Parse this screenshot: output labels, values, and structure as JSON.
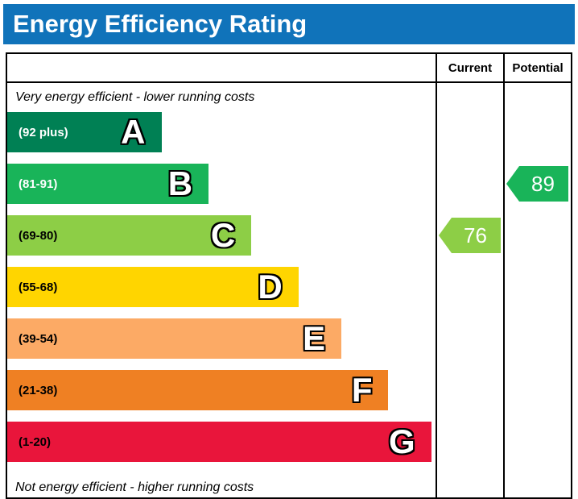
{
  "title": "Energy Efficiency Rating",
  "columns": {
    "current": "Current",
    "potential": "Potential"
  },
  "captions": {
    "top": "Very energy efficient - lower running costs",
    "bottom": "Not energy efficient - higher running costs"
  },
  "chart_data": {
    "type": "bar",
    "title": "Energy Efficiency Rating",
    "bands": [
      {
        "letter": "A",
        "range": "(92 plus)",
        "color": "#008054",
        "label_color": "#ffffff",
        "width_pct": 36
      },
      {
        "letter": "B",
        "range": "(81-91)",
        "color": "#19b459",
        "label_color": "#ffffff",
        "width_pct": 47
      },
      {
        "letter": "C",
        "range": "(69-80)",
        "color": "#8dce46",
        "label_color": "#000000",
        "width_pct": 57
      },
      {
        "letter": "D",
        "range": "(55-68)",
        "color": "#ffd500",
        "label_color": "#000000",
        "width_pct": 68
      },
      {
        "letter": "E",
        "range": "(39-54)",
        "color": "#fcaa65",
        "label_color": "#000000",
        "width_pct": 78
      },
      {
        "letter": "F",
        "range": "(21-38)",
        "color": "#ef8023",
        "label_color": "#000000",
        "width_pct": 89
      },
      {
        "letter": "G",
        "range": "(1-20)",
        "color": "#e9153b",
        "label_color": "#000000",
        "width_pct": 99
      }
    ],
    "current": {
      "value": "76",
      "band": "C",
      "color": "#8dce46"
    },
    "potential": {
      "value": "89",
      "band": "B",
      "color": "#19b459"
    }
  }
}
